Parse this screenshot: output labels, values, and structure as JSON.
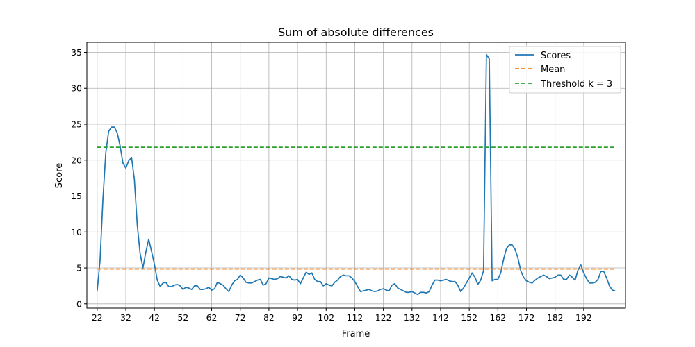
{
  "chart_data": {
    "type": "line",
    "title": "Sum of absolute differences",
    "xlabel": "Frame",
    "ylabel": "Score",
    "xlim": [
      18.4,
      206.6
    ],
    "ylim": [
      -0.6,
      36.4
    ],
    "xticks": [
      22,
      32,
      42,
      52,
      62,
      72,
      82,
      92,
      102,
      112,
      122,
      132,
      142,
      152,
      162,
      172,
      182,
      192
    ],
    "yticks": [
      0,
      5,
      10,
      15,
      20,
      25,
      30,
      35
    ],
    "grid": true,
    "legend_position": "top-right",
    "series": [
      {
        "name": "Scores",
        "color": "#1f77b4",
        "style": "solid",
        "x": [
          22,
          23,
          24,
          25,
          26,
          27,
          28,
          29,
          30,
          31,
          32,
          33,
          34,
          35,
          36,
          37,
          38,
          39,
          40,
          41,
          42,
          43,
          44,
          45,
          46,
          47,
          48,
          49,
          50,
          51,
          52,
          53,
          54,
          55,
          56,
          57,
          58,
          59,
          60,
          61,
          62,
          63,
          64,
          65,
          66,
          67,
          68,
          69,
          70,
          71,
          72,
          73,
          74,
          75,
          76,
          77,
          78,
          79,
          80,
          81,
          82,
          83,
          84,
          85,
          86,
          87,
          88,
          89,
          90,
          91,
          92,
          93,
          94,
          95,
          96,
          97,
          98,
          99,
          100,
          101,
          102,
          103,
          104,
          105,
          106,
          107,
          108,
          109,
          110,
          111,
          112,
          113,
          114,
          115,
          116,
          117,
          118,
          119,
          120,
          121,
          122,
          123,
          124,
          125,
          126,
          127,
          128,
          129,
          130,
          131,
          132,
          133,
          134,
          135,
          136,
          137,
          138,
          139,
          140,
          141,
          142,
          143,
          144,
          145,
          146,
          147,
          148,
          149,
          150,
          151,
          152,
          153,
          154,
          155,
          156,
          157,
          158,
          159,
          160,
          161,
          162,
          163,
          164,
          165,
          166,
          167,
          168,
          169,
          170,
          171,
          172,
          173,
          174,
          175,
          176,
          177,
          178,
          179,
          180,
          181,
          182,
          183,
          184,
          185,
          186,
          187,
          188,
          189,
          190,
          191,
          192,
          193,
          194,
          195,
          196,
          197,
          198,
          199,
          200,
          201,
          202,
          203
        ],
        "y": [
          1.8,
          6.0,
          14.5,
          21.0,
          24.0,
          24.6,
          24.6,
          23.8,
          22.0,
          19.6,
          18.9,
          19.9,
          20.4,
          17.3,
          11.0,
          7.0,
          5.0,
          7.2,
          9.0,
          7.3,
          5.5,
          3.3,
          2.4,
          2.9,
          3.0,
          2.4,
          2.4,
          2.6,
          2.7,
          2.5,
          2.0,
          2.3,
          2.2,
          2.0,
          2.5,
          2.5,
          2.0,
          2.0,
          2.1,
          2.3,
          1.9,
          2.1,
          3.0,
          2.8,
          2.6,
          2.1,
          1.7,
          2.6,
          3.2,
          3.4,
          4.0,
          3.6,
          3.0,
          2.9,
          2.9,
          3.1,
          3.3,
          3.4,
          2.6,
          2.8,
          3.6,
          3.5,
          3.4,
          3.5,
          3.8,
          3.7,
          3.6,
          3.9,
          3.4,
          3.3,
          3.4,
          2.8,
          3.6,
          4.4,
          4.1,
          4.3,
          3.4,
          3.1,
          3.1,
          2.5,
          2.8,
          2.6,
          2.5,
          3.0,
          3.3,
          3.8,
          4.0,
          3.9,
          3.9,
          3.6,
          3.1,
          2.4,
          1.7,
          1.8,
          1.9,
          2.0,
          1.8,
          1.7,
          1.8,
          2.0,
          2.1,
          1.9,
          1.8,
          2.6,
          2.8,
          2.2,
          2.0,
          1.8,
          1.6,
          1.6,
          1.7,
          1.5,
          1.3,
          1.6,
          1.6,
          1.5,
          1.7,
          2.6,
          3.3,
          3.3,
          3.2,
          3.3,
          3.4,
          3.2,
          3.1,
          3.1,
          2.6,
          1.7,
          2.2,
          2.9,
          3.6,
          4.3,
          3.7,
          2.7,
          3.3,
          4.6,
          34.7,
          34.1,
          3.2,
          3.4,
          3.4,
          4.3,
          6.2,
          7.7,
          8.2,
          8.2,
          7.6,
          6.4,
          4.6,
          3.7,
          3.2,
          3.0,
          2.9,
          3.3,
          3.6,
          3.8,
          4.0,
          3.8,
          3.5,
          3.6,
          3.7,
          4.0,
          4.0,
          3.4,
          3.4,
          4.0,
          3.7,
          3.3,
          4.7,
          5.4,
          4.3,
          3.5,
          2.9,
          2.9,
          3.0,
          3.4,
          4.5,
          4.5,
          3.6,
          2.5,
          1.9,
          1.8
        ]
      },
      {
        "name": "Mean",
        "color": "#ff7f0e",
        "style": "dashed",
        "x": [
          22,
          203
        ],
        "y": [
          4.85,
          4.85
        ]
      },
      {
        "name": "Threshold k = 3",
        "color": "#2ca02c",
        "style": "dashed",
        "x": [
          22,
          203
        ],
        "y": [
          21.8,
          21.8
        ]
      }
    ]
  }
}
